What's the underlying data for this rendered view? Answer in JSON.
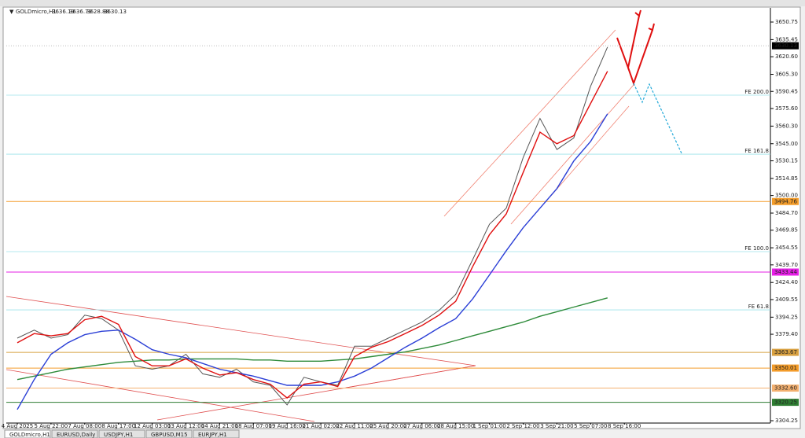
{
  "chart_data": {
    "type": "line",
    "symbol": "GOLDmicro,H1",
    "ohlc": [
      3636.19,
      3636.79,
      3628.88,
      3630.13
    ],
    "categories": [
      "4 Aug 2025",
      null,
      "5 Aug 22:00",
      null,
      "7 Aug 08:00",
      null,
      "8 Aug 17:00",
      null,
      "12 Aug 03:00",
      null,
      "13 Aug 12:00",
      null,
      "14 Aug 21:00",
      null,
      "18 Aug 07:00",
      null,
      "19 Aug 16:00",
      null,
      "21 Aug 02:00",
      null,
      "22 Aug 11:00",
      null,
      "25 Aug 20:00",
      null,
      "27 Aug 06:00",
      null,
      "28 Aug 15:00",
      null,
      "1 Sep 01:00",
      null,
      "2 Sep 12:00",
      null,
      "3 Sep 21:00",
      null,
      "5 Sep 07:00",
      null,
      "8 Sep 16:00"
    ],
    "series": [
      {
        "color": "#555555",
        "values": [
          3376,
          3383,
          3376,
          3379,
          3396,
          3393,
          3383,
          3352,
          3349,
          3352,
          3362,
          3345,
          3342,
          3349,
          3338,
          3335,
          3318,
          3342,
          3338,
          3335,
          3369,
          3369,
          3376,
          3383,
          3390,
          3400,
          3414,
          3444,
          3475,
          3489,
          3533,
          3567,
          3540,
          3550,
          3595,
          3629,
          null
        ]
      },
      {
        "color": "#2e8b3a",
        "values": [
          3340,
          3343,
          3346,
          3349,
          3351,
          3353,
          3355,
          3356,
          3357,
          3357,
          3358,
          3358,
          3358,
          3358,
          3357,
          3357,
          3356,
          3356,
          3356,
          3357,
          3358,
          3360,
          3362,
          3364,
          3367,
          3370,
          3374,
          3378,
          3382,
          3386,
          3390,
          3395,
          3399,
          3403,
          3407,
          3411,
          null
        ]
      },
      {
        "color": "#2b3fd6",
        "values": [
          3314,
          3340,
          3362,
          3372,
          3379,
          3382,
          3383,
          3375,
          3366,
          3362,
          3359,
          3354,
          3349,
          3346,
          3343,
          3339,
          3335,
          3335,
          3335,
          3338,
          3343,
          3350,
          3359,
          3368,
          3376,
          3385,
          3393,
          3410,
          3431,
          3452,
          3472,
          3489,
          3506,
          3530,
          3547,
          3571,
          null
        ]
      },
      {
        "color": "#e01010",
        "values": [
          3372,
          3380,
          3378,
          3380,
          3392,
          3395,
          3388,
          3360,
          3352,
          3352,
          3358,
          3350,
          3344,
          3346,
          3340,
          3336,
          3324,
          3336,
          3338,
          3334,
          3360,
          3368,
          3373,
          3380,
          3387,
          3396,
          3408,
          3438,
          3466,
          3484,
          3520,
          3555,
          3545,
          3552,
          3580,
          3608,
          null
        ]
      }
    ],
    "ylim": [
      3302.9,
      3661.7
    ],
    "yticks": [
      3650.75,
      3635.45,
      {
        "value": 3620.6,
        "label": "3620.60"
      },
      {
        "value": 3605.3,
        "label": "3605.30"
      },
      3590.45,
      {
        "value": 3575.6,
        "label": "3575.60"
      },
      {
        "value": 3560.3,
        "label": "3560.30"
      },
      {
        "value": 3545,
        "label": "3545.00"
      },
      3530.15,
      3514.85,
      {
        "value": 3500,
        "label": "3500.00"
      },
      {
        "value": 3484.7,
        "label": "3484.70"
      },
      3469.85,
      3454.55,
      {
        "value": 3439.7,
        "label": "3439.70"
      },
      {
        "value": 3424.4,
        "label": "3424.40"
      },
      3409.55,
      3394.25,
      {
        "value": 3379.4,
        "label": "3379.40"
      },
      3304.25
    ],
    "levels": [
      {
        "value": 3494.76,
        "color": "#f39c2a"
      },
      {
        "value": 3433.44,
        "color": "#e61fe6"
      },
      {
        "value": 3363.67,
        "color": "#d8a040"
      },
      {
        "value": 3350.01,
        "color": "#f39c2a"
      },
      {
        "value": 3332.6,
        "label": "3332.60",
        "color": "#f3b070"
      },
      {
        "value": 3320.25,
        "color": "#2e7d32"
      }
    ],
    "fe_levels": [
      {
        "label": "FE 200.0",
        "value": 3587.2
      },
      {
        "label": "FE 161.8",
        "value": 3535.9
      },
      {
        "label": "FE 100.0",
        "value": 3451.2
      },
      {
        "label": "FE 61.8",
        "value": 3400.6
      }
    ],
    "fe_color": "#9be3ea",
    "current": {
      "value": 3630.13,
      "color": "#000000"
    },
    "tabs": [
      "GOLDmicro,H1",
      "EURUSD,Daily",
      "USDJPY,H1",
      "GBPUSD,M15",
      "EURJPY,H1"
    ]
  }
}
